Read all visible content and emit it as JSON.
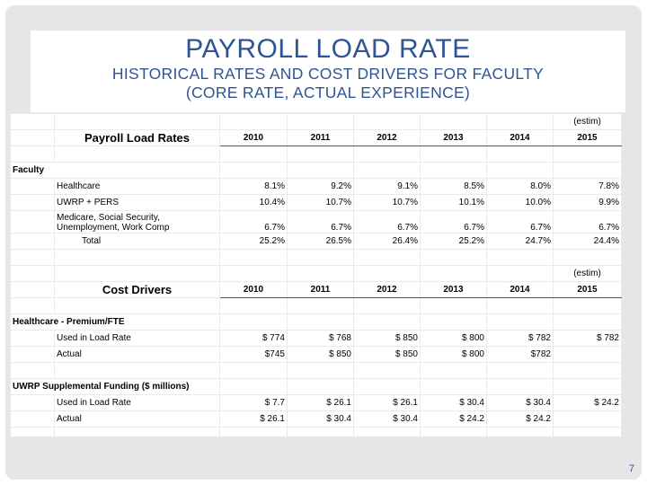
{
  "title": {
    "main": "PAYROLL LOAD RATE",
    "sub1": "HISTORICAL RATES AND COST DRIVERS FOR FACULTY",
    "sub2": "(CORE RATE, ACTUAL EXPERIENCE)"
  },
  "load_rates": {
    "heading": "Payroll Load Rates",
    "estim": "(estim)",
    "years": [
      "2010",
      "2011",
      "2012",
      "2013",
      "2014",
      "2015"
    ],
    "section": "Faculty",
    "rows": [
      {
        "label": "Healthcare",
        "values": [
          "8.1%",
          "9.2%",
          "9.1%",
          "8.5%",
          "8.0%",
          "7.8%"
        ]
      },
      {
        "label": "UWRP + PERS",
        "values": [
          "10.4%",
          "10.7%",
          "10.7%",
          "10.1%",
          "10.0%",
          "9.9%"
        ]
      },
      {
        "label": "Medicare, Social Security, Unemployment, Work Comp",
        "values": [
          "6.7%",
          "6.7%",
          "6.7%",
          "6.7%",
          "6.7%",
          "6.7%"
        ]
      }
    ],
    "total": {
      "label": "Total",
      "values": [
        "25.2%",
        "26.5%",
        "26.4%",
        "25.2%",
        "24.7%",
        "24.4%"
      ]
    }
  },
  "cost_drivers": {
    "heading": "Cost Drivers",
    "estim": "(estim)",
    "years": [
      "2010",
      "2011",
      "2012",
      "2013",
      "2014",
      "2015"
    ],
    "healthcare": {
      "section": "Healthcare - Premium/FTE",
      "rows": [
        {
          "label": "Used in Load Rate",
          "values": [
            "$ 774",
            "$ 768",
            "$ 850",
            "$ 800",
            "$ 782",
            "$ 782"
          ]
        },
        {
          "label": "Actual",
          "values": [
            "$745",
            "$ 850",
            "$ 850",
            "$ 800",
            "$782",
            ""
          ]
        }
      ]
    },
    "uwrp": {
      "section": "UWRP Supplemental Funding ($ millions)",
      "rows": [
        {
          "label": "Used in Load Rate",
          "values": [
            "$ 7.7",
            "$ 26.1",
            "$ 26.1",
            "$ 30.4",
            "$ 30.4",
            "$ 24.2"
          ]
        },
        {
          "label": "Actual",
          "values": [
            "$ 26.1",
            "$ 30.4",
            "$ 30.4",
            "$ 24.2",
            "$ 24.2",
            ""
          ]
        }
      ]
    }
  },
  "page_number": "7"
}
